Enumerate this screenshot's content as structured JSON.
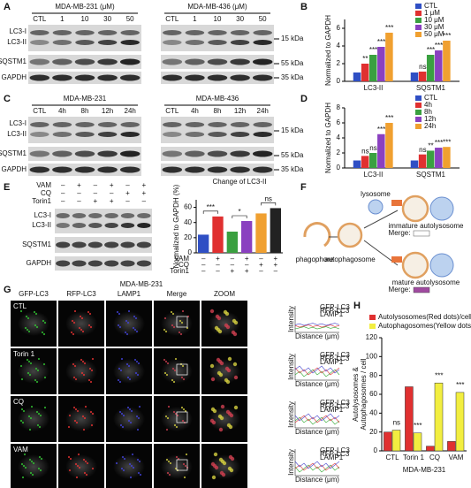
{
  "panel_A": {
    "label": "A",
    "blots": [
      {
        "title": "MDA-MB-231 (μM)",
        "lanes": [
          "CTL",
          "1",
          "10",
          "30",
          "50"
        ]
      },
      {
        "title": "MDA-MB-436 (μM)",
        "lanes": [
          "CTL",
          "1",
          "10",
          "30",
          "50"
        ]
      }
    ],
    "proteins": [
      "LC3-I",
      "LC3-II",
      "SQSTM1",
      "GAPDH"
    ],
    "markers": [
      "15 kDa",
      "55 kDa",
      "35 kDa"
    ]
  },
  "panel_B": {
    "label": "B",
    "chart": {
      "type": "bar",
      "ylabel": "Normalized to GAPDH",
      "categories": [
        "LC3-II",
        "SQSTM1"
      ],
      "series": [
        {
          "name": "CTL",
          "color": "#2f4fc4",
          "values": [
            1,
            1
          ],
          "significance": [
            null,
            null
          ]
        },
        {
          "name": "1 μM",
          "color": "#e03030",
          "values": [
            2,
            1.1
          ],
          "significance": [
            "**",
            "ns"
          ]
        },
        {
          "name": "10 μM",
          "color": "#3aa040",
          "values": [
            3,
            3
          ],
          "significance": [
            "***",
            "***"
          ]
        },
        {
          "name": "30 μM",
          "color": "#8a40c0",
          "values": [
            3.9,
            3.5
          ],
          "significance": [
            "***",
            "***"
          ]
        },
        {
          "name": "50 μM",
          "color": "#f0a030",
          "values": [
            5.5,
            4.6
          ],
          "significance": [
            "***",
            "***"
          ]
        }
      ],
      "ylim": [
        0,
        7
      ],
      "yticks": [
        0,
        2,
        4,
        6
      ]
    }
  },
  "panel_C": {
    "label": "C",
    "blots": [
      {
        "title": "MDA-MB-231",
        "lanes": [
          "CTL",
          "4h",
          "8h",
          "12h",
          "24h"
        ]
      },
      {
        "title": "MDA-MB-436",
        "lanes": [
          "CTL",
          "4h",
          "8h",
          "12h",
          "24h"
        ]
      }
    ],
    "proteins": [
      "LC3-I",
      "LC3-II",
      "SQSTM1",
      "GAPDH"
    ],
    "markers": [
      "15 kDa",
      "55 kDa",
      "35 kDa"
    ]
  },
  "panel_D": {
    "label": "D",
    "chart": {
      "type": "bar",
      "ylabel": "Normalized to GAPDH",
      "categories": [
        "LC3-II",
        "SQSTM1"
      ],
      "series": [
        {
          "name": "CTL",
          "color": "#2f4fc4",
          "values": [
            1,
            1
          ],
          "significance": [
            null,
            null
          ]
        },
        {
          "name": "4h",
          "color": "#e03030",
          "values": [
            1.6,
            1.8
          ],
          "significance": [
            "ns",
            "ns"
          ]
        },
        {
          "name": "8h",
          "color": "#3aa040",
          "values": [
            2,
            2.3
          ],
          "significance": [
            "ns",
            "**"
          ]
        },
        {
          "name": "12h",
          "color": "#8a40c0",
          "values": [
            4.5,
            2.7
          ],
          "significance": [
            "***",
            "***"
          ]
        },
        {
          "name": "24h",
          "color": "#f0a030",
          "values": [
            6,
            2.8
          ],
          "significance": [
            "***",
            "***"
          ]
        }
      ],
      "ylim": [
        0,
        8
      ],
      "yticks": [
        0,
        2,
        4,
        6,
        8
      ]
    }
  },
  "panel_E": {
    "label": "E",
    "treatments": [
      {
        "name": "VAM",
        "signs": [
          "–",
          "+",
          "–",
          "+",
          "–",
          "+"
        ]
      },
      {
        "name": "CQ",
        "signs": [
          "–",
          "–",
          "–",
          "–",
          "+",
          "+"
        ]
      },
      {
        "name": "Torin1",
        "signs": [
          "–",
          "–",
          "+",
          "+",
          "–",
          "–"
        ]
      }
    ],
    "proteins": [
      "LC3-I",
      "LC3-II",
      "SQSTM1",
      "GAPDH"
    ],
    "chart": {
      "type": "bar",
      "title": "Change of LC3-II",
      "ylabel": "Normalized to GAPDH (%)",
      "values": [
        24,
        48,
        28,
        42,
        52,
        59
      ],
      "colors": [
        "#2f4fc4",
        "#e03030",
        "#3aa040",
        "#8a40c0",
        "#f0a030",
        "#222222"
      ],
      "comparisons": [
        "***",
        "*",
        "ns"
      ],
      "ylim": [
        0,
        70
      ],
      "yticks": [
        0,
        20,
        40,
        60
      ]
    }
  },
  "panel_F": {
    "label": "F",
    "lysosome": "lysosome",
    "phagophore": "phagophore",
    "autophagosome": "autophagosome",
    "immature": "immature  autolysosome",
    "mature": "mature  autolysosome",
    "merge": "Merge:"
  },
  "panel_G": {
    "label": "G",
    "title": "MDA-MB-231",
    "columns": [
      "GFP-LC3",
      "RFP-LC3",
      "LAMP1",
      "Merge",
      "ZOOM"
    ],
    "rows": [
      "CTL",
      "Torin 1",
      "CQ",
      "VAM"
    ],
    "profile": {
      "legend": [
        "GFP-LC3",
        "RFP-LC3",
        "LAMP1"
      ],
      "ylabel": "Intensity",
      "xlabel": "Distance (μm)"
    }
  },
  "panel_H": {
    "label": "H",
    "chart": {
      "type": "bar",
      "ylabel": "Autolysosomes &",
      "ylabel2": "Autophagosomes / cell",
      "xlabel": "MDA-MB-231",
      "categories": [
        "CTL",
        "Torin 1",
        "CQ",
        "VAM"
      ],
      "series": [
        {
          "name": "Autolysosomes(Red dots)/cell",
          "color": "#e03030",
          "values": [
            20,
            68,
            5,
            10
          ],
          "significance": [
            null,
            null,
            null,
            null
          ]
        },
        {
          "name": "Autophagosomes(Yellow dots)/cell",
          "color": "#f2ee40",
          "values": [
            22,
            19,
            72,
            62
          ],
          "significance": [
            "ns",
            "***",
            "***",
            "***"
          ]
        }
      ],
      "ylim": [
        0,
        120
      ],
      "yticks": [
        0,
        20,
        40,
        60,
        80,
        100,
        120
      ]
    }
  }
}
